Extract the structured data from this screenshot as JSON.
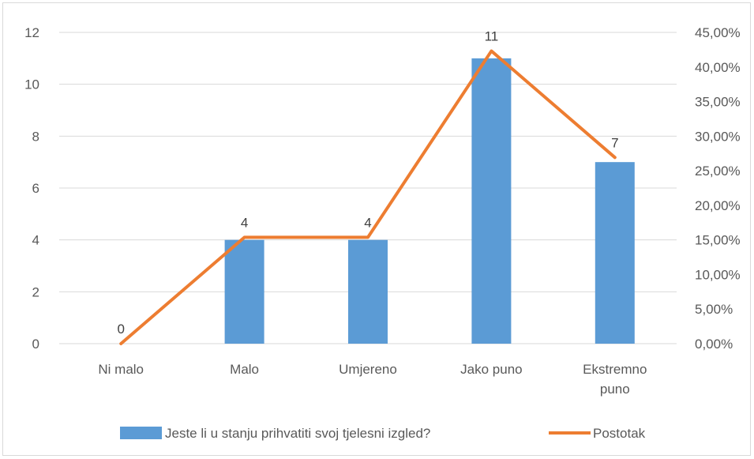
{
  "chart_data": {
    "type": "bar",
    "categories": [
      [
        "Ni malo"
      ],
      [
        "Malo"
      ],
      [
        "Umjereno"
      ],
      [
        "Jako puno"
      ],
      [
        "Ekstremno",
        "puno"
      ]
    ],
    "series": [
      {
        "name": "Jeste li u stanju prihvatiti svoj tjelesni izgled?",
        "type": "bar",
        "axis": "left",
        "values": [
          0,
          4,
          4,
          11,
          7
        ],
        "data_labels": [
          "0",
          "4",
          "4",
          "11",
          "7"
        ],
        "color": "#5b9bd5"
      },
      {
        "name": "Postotak",
        "type": "line",
        "axis": "right",
        "values": [
          0.0,
          15.38,
          15.38,
          42.31,
          26.92
        ],
        "color": "#ed7d31"
      }
    ],
    "y_left": {
      "range": [
        0,
        12
      ],
      "ticks": [
        "0",
        "2",
        "4",
        "6",
        "8",
        "10",
        "12"
      ],
      "tick_values": [
        0,
        2,
        4,
        6,
        8,
        10,
        12
      ]
    },
    "y_right": {
      "range": [
        0,
        45
      ],
      "ticks": [
        "0,00%",
        "5,00%",
        "10,00%",
        "15,00%",
        "20,00%",
        "25,00%",
        "30,00%",
        "35,00%",
        "40,00%",
        "45,00%"
      ],
      "tick_values": [
        0,
        5,
        10,
        15,
        20,
        25,
        30,
        35,
        40,
        45
      ]
    },
    "grid": true,
    "legend_position": "bottom",
    "title": "",
    "xlabel": "",
    "ylabel": ""
  }
}
